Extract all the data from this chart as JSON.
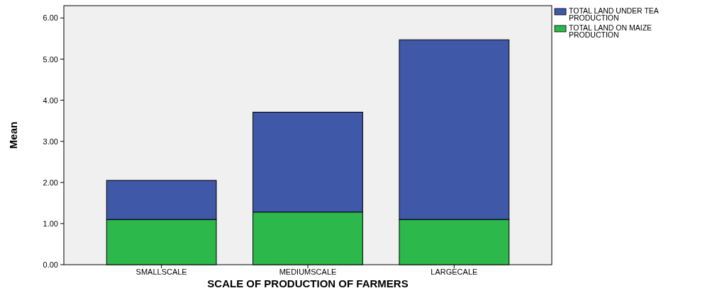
{
  "chart_data": {
    "type": "bar",
    "stacked": true,
    "xlabel": "SCALE OF PRODUCTION OF FARMERS",
    "ylabel": "Mean",
    "categories": [
      "SMALLSCALE",
      "MEDIUMSCALE",
      "LARGECALE"
    ],
    "series": [
      {
        "name": "TOTAL LAND ON MAIZE PRODUCTION",
        "color": "#2db84b",
        "values": [
          1.1,
          1.28,
          1.1
        ]
      },
      {
        "name": "TOTAL LAND UNDER TEA PRODUCTION",
        "color": "#3f58a8",
        "values": [
          0.95,
          2.43,
          4.37
        ]
      }
    ],
    "ylim": [
      0,
      6.3
    ],
    "yticks": [
      {
        "value": 0,
        "label": "0.00"
      },
      {
        "value": 1,
        "label": "1.00"
      },
      {
        "value": 2,
        "label": "2.00"
      },
      {
        "value": 3,
        "label": "3.00"
      },
      {
        "value": 4,
        "label": "4.00"
      },
      {
        "value": 5,
        "label": "5.00"
      },
      {
        "value": 6,
        "label": "6.00"
      }
    ],
    "legend": "top right",
    "grid": false
  }
}
